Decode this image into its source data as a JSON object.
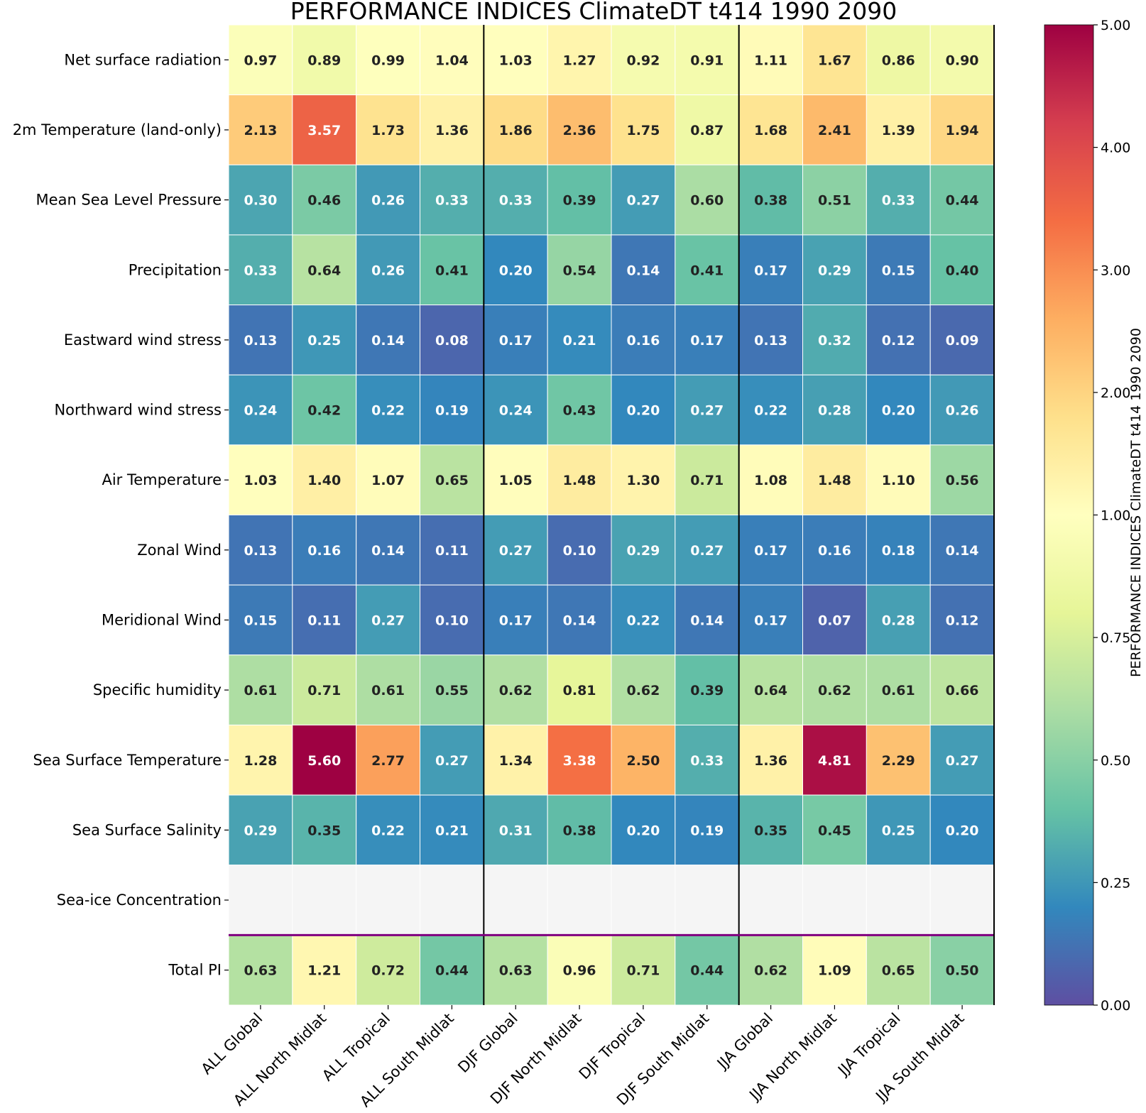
{
  "chart_data": {
    "type": "heatmap",
    "title": "PERFORMANCE INDICES ClimateDT t414 1990 2090",
    "colorbar_label": "PERFORMANCE INDICES ClimateDT t414 1990 2090",
    "colorbar_ticks": [
      "0.00",
      "0.25",
      "0.50",
      "0.75",
      "1.00",
      "2.00",
      "3.00",
      "4.00",
      "5.00"
    ],
    "colorbar_range": [
      0,
      5
    ],
    "colormap": "Spectral_r",
    "x_categories": [
      "ALL Global",
      "ALL North Midlat",
      "ALL Tropical",
      "ALL South Midlat",
      "DJF Global",
      "DJF North Midlat",
      "DJF Tropical",
      "DJF South Midlat",
      "JJA Global",
      "JJA North Midlat",
      "JJA Tropical",
      "JJA South Midlat"
    ],
    "y_categories": [
      "Net surface radiation",
      "2m Temperature (land-only)",
      "Mean Sea Level Pressure",
      "Precipitation",
      "Eastward wind stress",
      "Northward wind stress",
      "Air Temperature",
      "Zonal Wind",
      "Meridional Wind",
      "Specific humidity",
      "Sea Surface Temperature",
      "Sea Surface Salinity",
      "Sea-ice Concentration",
      "Total PI"
    ],
    "values": [
      [
        "0.97",
        "0.89",
        "0.99",
        "1.04",
        "1.03",
        "1.27",
        "0.92",
        "0.91",
        "1.11",
        "1.67",
        "0.86",
        "0.90"
      ],
      [
        "2.13",
        "3.57",
        "1.73",
        "1.36",
        "1.86",
        "2.36",
        "1.75",
        "0.87",
        "1.68",
        "2.41",
        "1.39",
        "1.94"
      ],
      [
        "0.30",
        "0.46",
        "0.26",
        "0.33",
        "0.33",
        "0.39",
        "0.27",
        "0.60",
        "0.38",
        "0.51",
        "0.33",
        "0.44"
      ],
      [
        "0.33",
        "0.64",
        "0.26",
        "0.41",
        "0.20",
        "0.54",
        "0.14",
        "0.41",
        "0.17",
        "0.29",
        "0.15",
        "0.40"
      ],
      [
        "0.13",
        "0.25",
        "0.14",
        "0.08",
        "0.17",
        "0.21",
        "0.16",
        "0.17",
        "0.13",
        "0.32",
        "0.12",
        "0.09"
      ],
      [
        "0.24",
        "0.42",
        "0.22",
        "0.19",
        "0.24",
        "0.43",
        "0.20",
        "0.27",
        "0.22",
        "0.28",
        "0.20",
        "0.26"
      ],
      [
        "1.03",
        "1.40",
        "1.07",
        "0.65",
        "1.05",
        "1.48",
        "1.30",
        "0.71",
        "1.08",
        "1.48",
        "1.10",
        "0.56"
      ],
      [
        "0.13",
        "0.16",
        "0.14",
        "0.11",
        "0.27",
        "0.10",
        "0.29",
        "0.27",
        "0.17",
        "0.16",
        "0.18",
        "0.14"
      ],
      [
        "0.15",
        "0.11",
        "0.27",
        "0.10",
        "0.17",
        "0.14",
        "0.22",
        "0.14",
        "0.17",
        "0.07",
        "0.28",
        "0.12"
      ],
      [
        "0.61",
        "0.71",
        "0.61",
        "0.55",
        "0.62",
        "0.81",
        "0.62",
        "0.39",
        "0.64",
        "0.62",
        "0.61",
        "0.66"
      ],
      [
        "1.28",
        "5.60",
        "2.77",
        "0.27",
        "1.34",
        "3.38",
        "2.50",
        "0.33",
        "1.36",
        "4.81",
        "2.29",
        "0.27"
      ],
      [
        "0.29",
        "0.35",
        "0.22",
        "0.21",
        "0.31",
        "0.38",
        "0.20",
        "0.19",
        "0.35",
        "0.45",
        "0.25",
        "0.20"
      ],
      [
        null,
        null,
        null,
        null,
        null,
        null,
        null,
        null,
        null,
        null,
        null,
        null
      ],
      [
        "0.63",
        "1.21",
        "0.72",
        "0.44",
        "0.63",
        "0.96",
        "0.71",
        "0.44",
        "0.62",
        "1.09",
        "0.65",
        "0.50"
      ]
    ],
    "missing_color": "#f5f5f5",
    "season_separators_after_columns": [
      4,
      8
    ],
    "total_separator_color": "#800080"
  }
}
